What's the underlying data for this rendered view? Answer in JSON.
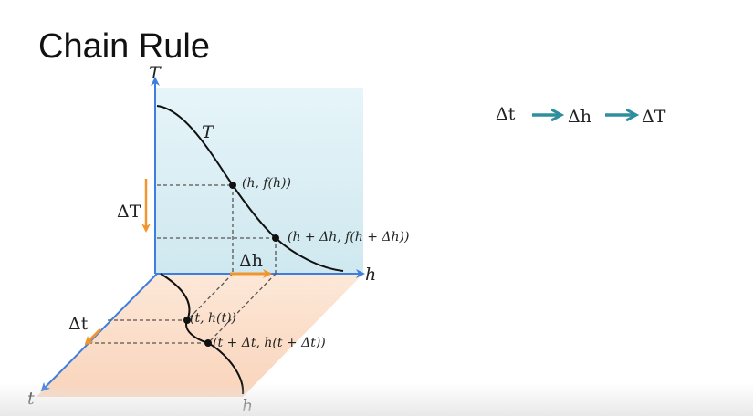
{
  "slide": {
    "title": "Chain Rule"
  },
  "diagram": {
    "axes": {
      "vertical_label": "T",
      "horizontal_label": "h",
      "depth_label": "t",
      "bottom_plane_label": "h"
    },
    "curve_labels": {
      "upper_curve": "T"
    },
    "points": {
      "upper_1": "(h, f(h))",
      "upper_2": "(h + Δh, f(h + Δh))",
      "lower_1": "(t, h(t))",
      "lower_2": "(t + Δt, h(t + Δt))"
    },
    "deltas": {
      "delta_T": "ΔT",
      "delta_h": "Δh",
      "delta_t": "Δt"
    }
  },
  "chain": {
    "step_1": "Δt",
    "step_2": "Δh",
    "step_3": "ΔT"
  },
  "colors": {
    "axis_blue": "#3e7ee0",
    "arrow_orange": "#f0962e",
    "chain_teal": "#2f8f9c",
    "top_plane": "#dff1f6",
    "bottom_plane": "#fbdcc6"
  }
}
